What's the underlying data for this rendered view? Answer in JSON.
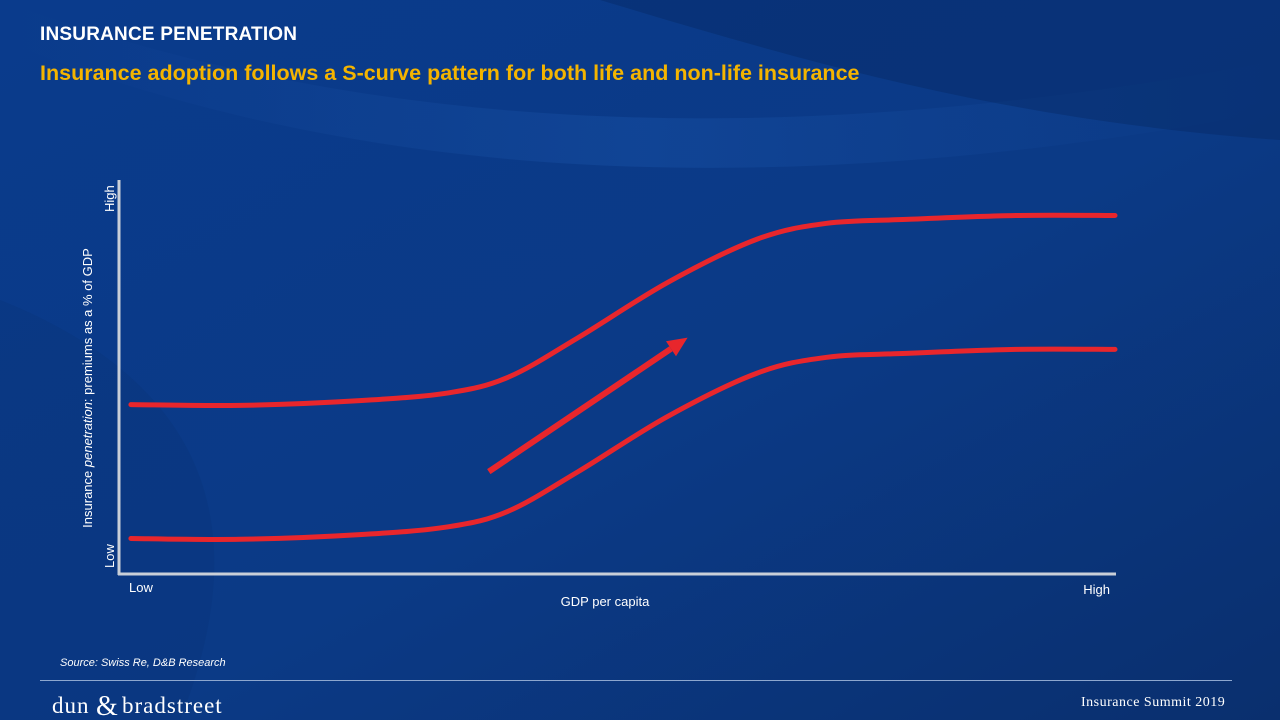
{
  "header": {
    "section": "INSURANCE PENETRATION",
    "title": "Insurance adoption follows a S-curve pattern for both life and non-life insurance"
  },
  "colors": {
    "background": "#0c3a86",
    "title_accent": "#f4b400",
    "curve": "#e8262c",
    "axis": "#c9cfd8",
    "text": "#ffffff"
  },
  "chart_data": {
    "type": "line",
    "xlabel": "GDP per capita",
    "ylabel_prefix": "Insurance ",
    "ylabel_emphasis": "penetration",
    "ylabel_suffix": ": premiums as a % of GDP",
    "x_ticks": [
      "Low",
      "High"
    ],
    "y_ticks": [
      "Low",
      "High"
    ],
    "xlim": [
      0,
      1
    ],
    "ylim": [
      0,
      1
    ],
    "grid": false,
    "series": [
      {
        "x": [
          0.01,
          0.12,
          0.24,
          0.33,
          0.39,
          0.46,
          0.55,
          0.64,
          0.71,
          0.79,
          0.9,
          1.0
        ],
        "y": [
          0.43,
          0.428,
          0.44,
          0.46,
          0.5,
          0.6,
          0.74,
          0.85,
          0.89,
          0.9,
          0.91,
          0.91
        ]
      },
      {
        "x": [
          0.01,
          0.12,
          0.24,
          0.33,
          0.39,
          0.46,
          0.55,
          0.64,
          0.71,
          0.79,
          0.9,
          1.0
        ],
        "y": [
          0.09,
          0.088,
          0.1,
          0.12,
          0.16,
          0.26,
          0.4,
          0.51,
          0.55,
          0.56,
          0.57,
          0.57
        ]
      }
    ],
    "arrow": {
      "from": [
        0.37,
        0.26
      ],
      "to": [
        0.57,
        0.6
      ]
    }
  },
  "footer": {
    "source": "Source: Swiss Re, D&B Research",
    "logo_left": "dun",
    "logo_amp": "&",
    "logo_right": "bradstreet",
    "event": "Insurance Summit 2019"
  }
}
